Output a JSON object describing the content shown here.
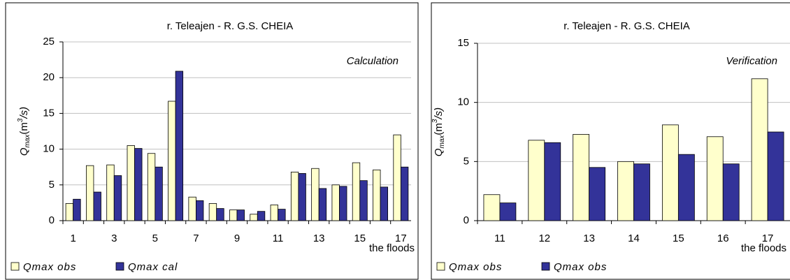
{
  "chart_data": [
    {
      "type": "bar",
      "title": "r. Teleajen  - R. G.S. CHEIA",
      "annotation": "Calculation",
      "ylabel": [
        "Q",
        "max",
        "(m",
        "3",
        "/s)"
      ],
      "xlabel": "the floods",
      "categories": [
        "1",
        null,
        "3",
        null,
        "5",
        null,
        "7",
        null,
        "9",
        null,
        "11",
        null,
        "13",
        null,
        "15",
        null,
        "17"
      ],
      "series": [
        {
          "name": "Qmax obs",
          "color": "#ffffcc",
          "values": [
            2.4,
            7.7,
            7.8,
            10.5,
            9.4,
            16.7,
            3.3,
            2.4,
            1.5,
            0.9,
            2.2,
            6.8,
            7.3,
            5.0,
            8.1,
            7.1,
            12.0
          ]
        },
        {
          "name": "Qmax cal",
          "color": "#333399",
          "values": [
            3.0,
            4.0,
            6.3,
            10.1,
            7.5,
            20.9,
            2.8,
            1.7,
            1.5,
            1.3,
            1.6,
            6.6,
            4.5,
            4.8,
            5.6,
            4.7,
            7.5
          ]
        }
      ],
      "ylim": [
        0,
        25
      ],
      "yticks": [
        0,
        5,
        10,
        15,
        20,
        25
      ],
      "grid": true,
      "legend": "bottom"
    },
    {
      "type": "bar",
      "title": "r. Teleajen  -  R. G.S. CHEIA",
      "annotation": "Verification",
      "ylabel": [
        "Q",
        "max",
        "(m",
        "3",
        "/s)"
      ],
      "xlabel": "the floods",
      "categories": [
        "11",
        "12",
        "13",
        "14",
        "15",
        "16",
        "17"
      ],
      "series": [
        {
          "name": "Qmax obs",
          "color": "#ffffcc",
          "values": [
            2.2,
            6.8,
            7.3,
            5.0,
            8.1,
            7.1,
            12.0
          ]
        },
        {
          "name": "Qmax obs",
          "color": "#333399",
          "values": [
            1.5,
            6.6,
            4.5,
            4.8,
            5.6,
            4.8,
            7.5
          ]
        }
      ],
      "ylim": [
        0,
        15
      ],
      "yticks": [
        0,
        5,
        10,
        15
      ],
      "grid": true,
      "legend": "bottom"
    }
  ]
}
